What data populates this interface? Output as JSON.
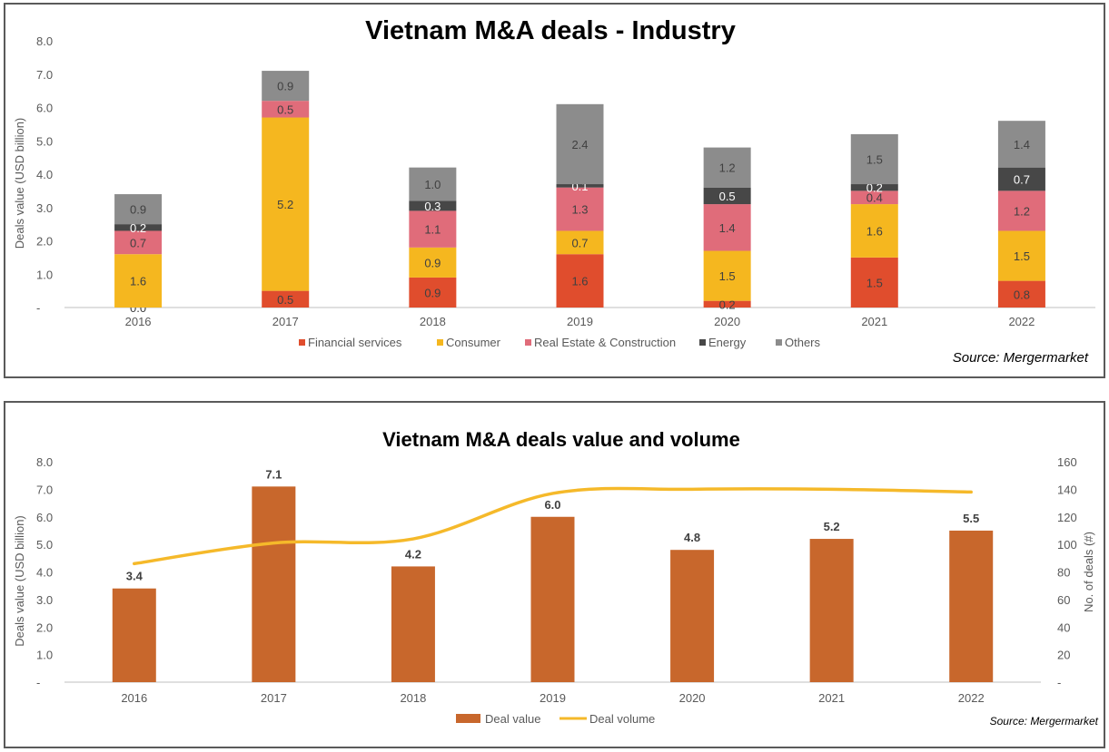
{
  "chart_data": [
    {
      "type": "bar",
      "stacked": true,
      "title": "Vietnam M&A deals - Industry",
      "ylabel": "Deals value (USD billion)",
      "xlabel": "",
      "ylim": [
        0,
        8
      ],
      "y_ticks": [
        "-",
        "1.0",
        "2.0",
        "3.0",
        "4.0",
        "5.0",
        "6.0",
        "7.0",
        "8.0"
      ],
      "categories": [
        "2016",
        "2017",
        "2018",
        "2019",
        "2020",
        "2021",
        "2022"
      ],
      "series": [
        {
          "name": "Financial services",
          "color": "#e04d2d",
          "values": [
            0.0,
            0.5,
            0.9,
            1.6,
            0.2,
            1.5,
            0.8
          ],
          "labels": [
            "0.0",
            "0.5",
            "0.9",
            "1.6",
            "0.2",
            "1.5",
            "0.8"
          ]
        },
        {
          "name": "Consumer",
          "color": "#f5b71f",
          "values": [
            1.6,
            5.2,
            0.9,
            0.7,
            1.5,
            1.6,
            1.5
          ],
          "labels": [
            "1.6",
            "5.2",
            "0.9",
            "0.7",
            "1.5",
            "1.6",
            "1.5"
          ]
        },
        {
          "name": "Real Estate & Construction",
          "color": "#e06c7a",
          "values": [
            0.7,
            0.5,
            1.1,
            1.3,
            1.4,
            0.4,
            1.2
          ],
          "labels": [
            "0.7",
            "0.5",
            "1.1",
            "1.3",
            "1.4",
            "0.4",
            "1.2"
          ]
        },
        {
          "name": "Energy",
          "color": "#474747",
          "values": [
            0.2,
            0.0,
            0.3,
            0.1,
            0.5,
            0.2,
            0.7
          ],
          "labels": [
            "0.2",
            "",
            "0.3",
            "0.1",
            "0.5",
            "0.2",
            "0.7"
          ]
        },
        {
          "name": "Others",
          "color": "#8c8c8c",
          "values": [
            0.9,
            0.9,
            1.0,
            2.4,
            1.2,
            1.5,
            1.4
          ],
          "labels": [
            "0.9",
            "0.9",
            "1.0",
            "2.4",
            "1.2",
            "1.5",
            "1.4"
          ]
        }
      ],
      "legend": "bottom",
      "source": "Source: Mergermarket"
    },
    {
      "type": "bar",
      "title": "Vietnam M&A deals value and volume",
      "ylabel": "Deals value (USD billion)",
      "ylabel_right": "No. of deals (#)",
      "ylim": [
        0,
        8
      ],
      "ylim_right": [
        0,
        160
      ],
      "y_ticks": [
        "-",
        "1.0",
        "2.0",
        "3.0",
        "4.0",
        "5.0",
        "6.0",
        "7.0",
        "8.0"
      ],
      "y_ticks_right": [
        "-",
        "20",
        "40",
        "60",
        "80",
        "100",
        "120",
        "140",
        "160"
      ],
      "categories": [
        "2016",
        "2017",
        "2018",
        "2019",
        "2020",
        "2021",
        "2022"
      ],
      "series": [
        {
          "name": "Deal value",
          "type": "bar",
          "color": "#c8672c",
          "values": [
            3.4,
            7.1,
            4.2,
            6.0,
            4.8,
            5.2,
            5.5
          ],
          "labels": [
            "3.4",
            "7.1",
            "4.2",
            "6.0",
            "4.8",
            "5.2",
            "5.5"
          ]
        },
        {
          "name": "Deal volume",
          "type": "line",
          "axis": "right",
          "color": "#f5b92a",
          "values": [
            86,
            101,
            104,
            137,
            140,
            140,
            138
          ]
        }
      ],
      "legend": "bottom",
      "source": "Source: Mergermarket"
    }
  ]
}
